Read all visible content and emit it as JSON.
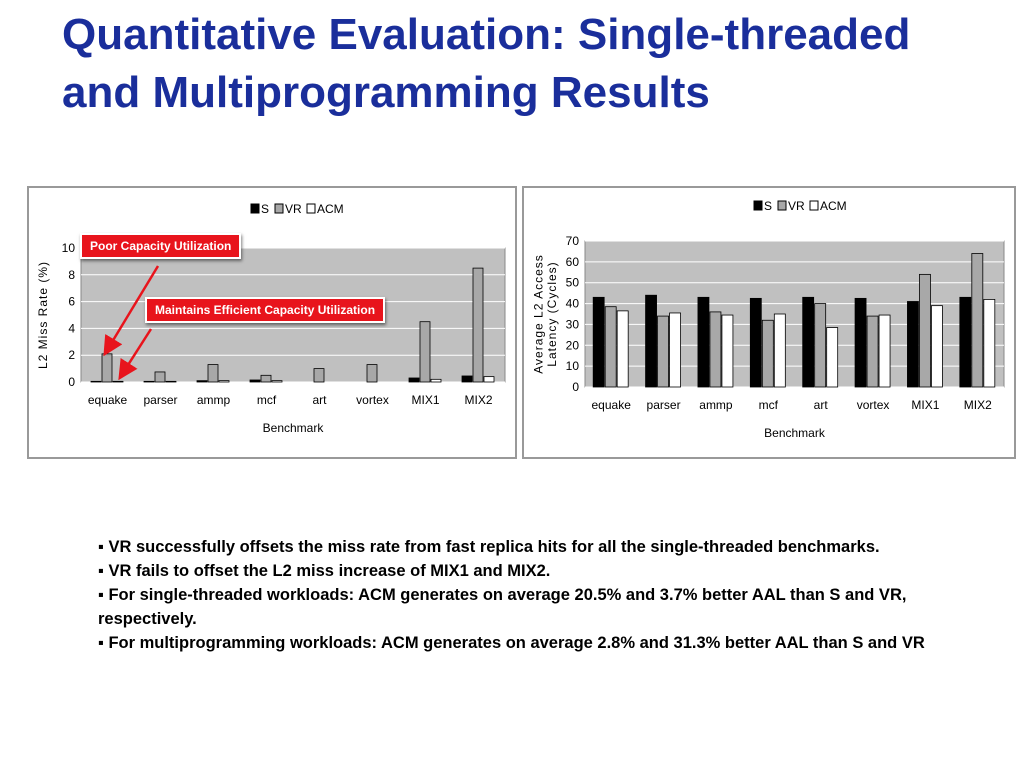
{
  "slide": {
    "title": "Quantitative Evaluation: Single-threaded and Multiprogramming Results",
    "callouts": [
      "Poor Capacity Utilization",
      "Maintains Efficient Capacity Utilization"
    ],
    "bullets": [
      "VR successfully offsets the miss rate from fast replica hits for all the single-threaded benchmarks.",
      "VR fails to offset the L2 miss increase of MIX1 and MIX2.",
      "For single-threaded workloads: ACM generates on average 20.5% and 3.7% better AAL than S and VR, respectively.",
      "For multiprogramming workloads: ACM generates on average 2.8% and 31.3% better AAL than S and VR"
    ]
  },
  "chart_data": [
    {
      "type": "bar",
      "categories": [
        "equake",
        "parser",
        "ammp",
        "mcf",
        "art",
        "vortex",
        "MIX1",
        "MIX2"
      ],
      "series": [
        {
          "name": "S",
          "values": [
            0.05,
            0.05,
            0.1,
            0.15,
            0.0,
            0.0,
            0.3,
            0.45
          ],
          "color": "#000000"
        },
        {
          "name": "VR",
          "values": [
            2.1,
            0.75,
            1.3,
            0.5,
            1.0,
            1.3,
            4.5,
            8.5
          ],
          "color": "#a8a8a8"
        },
        {
          "name": "ACM",
          "values": [
            0.05,
            0.05,
            0.1,
            0.1,
            0.0,
            0.0,
            0.2,
            0.4
          ],
          "color": "#ffffff"
        }
      ],
      "xlabel": "Benchmark",
      "ylabel": "L2 Miss Rate (%)",
      "ylim": [
        0,
        10
      ],
      "yticks": [
        0,
        2,
        4,
        6,
        8,
        10
      ],
      "grid": true,
      "legend": "top"
    },
    {
      "type": "bar",
      "categories": [
        "equake",
        "parser",
        "ammp",
        "mcf",
        "art",
        "vortex",
        "MIX1",
        "MIX2"
      ],
      "series": [
        {
          "name": "S",
          "values": [
            43,
            44,
            43,
            42.5,
            43,
            42.5,
            41,
            43
          ],
          "color": "#000000"
        },
        {
          "name": "VR",
          "values": [
            38.5,
            34,
            36,
            32,
            40,
            34,
            54,
            64
          ],
          "color": "#a8a8a8"
        },
        {
          "name": "ACM",
          "values": [
            36.5,
            35.5,
            34.5,
            35,
            28.5,
            34.5,
            39,
            42
          ],
          "color": "#ffffff"
        }
      ],
      "xlabel": "Benchmark",
      "ylabel": "Average L2 Access Latency (Cycles)",
      "ylim": [
        0,
        70
      ],
      "yticks": [
        0,
        10,
        20,
        30,
        40,
        50,
        60,
        70
      ],
      "grid": true,
      "legend": "top"
    }
  ]
}
